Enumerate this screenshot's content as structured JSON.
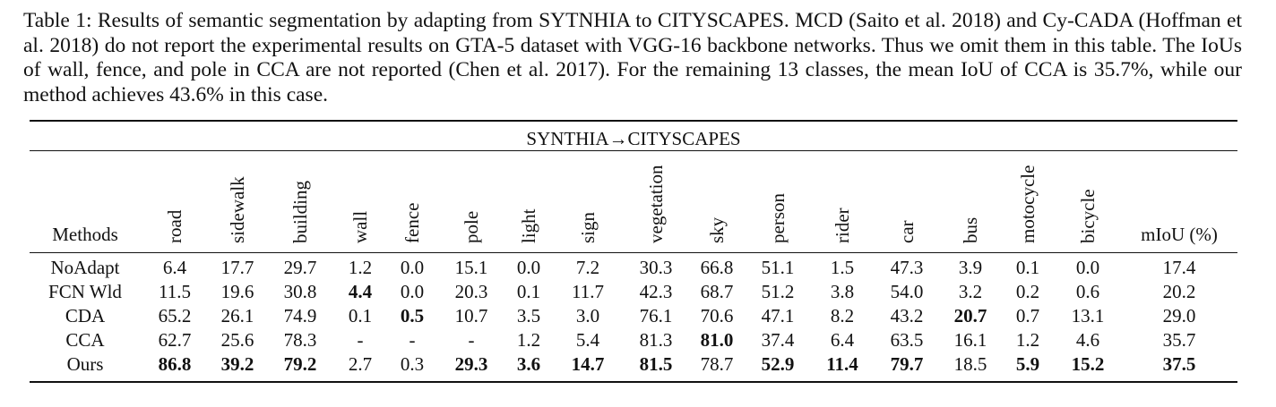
{
  "caption": "Table 1: Results of semantic segmentation by adapting from SYTNHIA to CITYSCAPES. MCD (Saito et al. 2018) and Cy-CADA (Hoffman et al. 2018) do not report the experimental results on GTA-5 dataset with VGG-16 backbone networks. Thus we omit them in this table. The IoUs of wall, fence, and pole in CCA are not reported (Chen et al. 2017). For the remaining 13 classes, the mean IoU of CCA is 35.7%, while our method achieves 43.6% in this case.",
  "table": {
    "span_title": "SYNTHIA→CITYSCAPES",
    "methods_header": "Methods",
    "miou_header": "mIoU (%)",
    "classes": [
      "road",
      "sidewalk",
      "building",
      "wall",
      "fence",
      "pole",
      "light",
      "sign",
      "vegetation",
      "sky",
      "person",
      "rider",
      "car",
      "bus",
      "motocycle",
      "bicycle"
    ],
    "rows": [
      {
        "method": "NoAdapt",
        "values": [
          "6.4",
          "17.7",
          "29.7",
          "1.2",
          "0.0",
          "15.1",
          "0.0",
          "7.2",
          "30.3",
          "66.8",
          "51.1",
          "1.5",
          "47.3",
          "3.9",
          "0.1",
          "0.0"
        ],
        "miou": "17.4",
        "bold_idx": [],
        "miou_bold": false
      },
      {
        "method": "FCN Wld",
        "values": [
          "11.5",
          "19.6",
          "30.8",
          "4.4",
          "0.0",
          "20.3",
          "0.1",
          "11.7",
          "42.3",
          "68.7",
          "51.2",
          "3.8",
          "54.0",
          "3.2",
          "0.2",
          "0.6"
        ],
        "miou": "20.2",
        "bold_idx": [
          3
        ],
        "miou_bold": false
      },
      {
        "method": "CDA",
        "values": [
          "65.2",
          "26.1",
          "74.9",
          "0.1",
          "0.5",
          "10.7",
          "3.5",
          "3.0",
          "76.1",
          "70.6",
          "47.1",
          "8.2",
          "43.2",
          "20.7",
          "0.7",
          "13.1"
        ],
        "miou": "29.0",
        "bold_idx": [
          4,
          13
        ],
        "miou_bold": false
      },
      {
        "method": "CCA",
        "values": [
          "62.7",
          "25.6",
          "78.3",
          "-",
          "-",
          "-",
          "1.2",
          "5.4",
          "81.3",
          "81.0",
          "37.4",
          "6.4",
          "63.5",
          "16.1",
          "1.2",
          "4.6"
        ],
        "miou": "35.7",
        "bold_idx": [
          9
        ],
        "miou_bold": false
      },
      {
        "method": "Ours",
        "values": [
          "86.8",
          "39.2",
          "79.2",
          "2.7",
          "0.3",
          "29.3",
          "3.6",
          "14.7",
          "81.5",
          "78.7",
          "52.9",
          "11.4",
          "79.7",
          "18.5",
          "5.9",
          "15.2"
        ],
        "miou": "37.5",
        "bold_idx": [
          0,
          1,
          2,
          5,
          6,
          7,
          8,
          10,
          11,
          12,
          14,
          15
        ],
        "miou_bold": true
      }
    ]
  }
}
